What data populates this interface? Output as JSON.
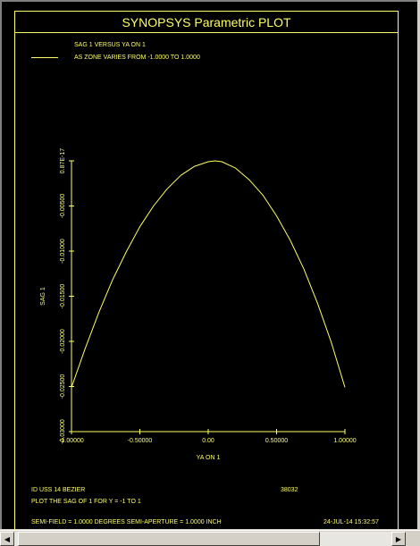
{
  "window": {
    "title": "SYNOPSYS Parametric PLOT"
  },
  "legend": {
    "line1": "SAG  1 VERSUS YA ON  1",
    "line2": "AS ZONE VARIES FROM  -1.0000 TO   1.0000"
  },
  "footer": {
    "id_line": "ID USS 14 BEZIER",
    "code": "38032",
    "plot_line": "PLOT THE SAG OF 1 FOR Y = -1 TO 1",
    "field_line": "SEMI-FIELD =  1.0000 DEGREES   SEMI-APERTURE =   1.0000 INCH",
    "date_line": "24-JUL-14  15:32:57"
  },
  "colors": {
    "plot": "#ffff66",
    "background": "#000000"
  },
  "chart_data": {
    "type": "line",
    "title": "SYNOPSYS Parametric PLOT",
    "xlabel": "YA ON   1",
    "ylabel": "SAG   1",
    "xlim": [
      -1.0,
      1.0
    ],
    "ylim": [
      -0.03,
      0.0
    ],
    "x_ticks": [
      -1.0,
      -0.5,
      0.0,
      0.5,
      1.0
    ],
    "x_tick_labels": [
      "-1.00000",
      "-0.50000",
      "0.00",
      "0.50000",
      "1.00000"
    ],
    "y_ticks": [
      0.0,
      -0.005,
      -0.01,
      -0.015,
      -0.02,
      -0.025,
      -0.03
    ],
    "y_tick_labels": [
      "0.87E-17",
      "-0.00500",
      "-0.01000",
      "-0.01500",
      "-0.02000",
      "-0.02500",
      "-0.03000"
    ],
    "grid": false,
    "series": [
      {
        "x": [
          -1.0,
          -0.9,
          -0.8,
          -0.7,
          -0.6,
          -0.5,
          -0.4,
          -0.3,
          -0.2,
          -0.1,
          0.0,
          0.05,
          0.1,
          0.2,
          0.3,
          0.4,
          0.5,
          0.6,
          0.7,
          0.8,
          0.9,
          1.0
        ],
        "y": [
          -0.0251,
          -0.0208,
          -0.0168,
          -0.0132,
          -0.0101,
          -0.0073,
          -0.005,
          -0.0031,
          -0.0016,
          -0.0006,
          -0.0001,
          0.0,
          -0.0001,
          -0.0008,
          -0.0021,
          -0.0038,
          -0.0061,
          -0.0088,
          -0.012,
          -0.0158,
          -0.0201,
          -0.0251
        ]
      }
    ]
  }
}
